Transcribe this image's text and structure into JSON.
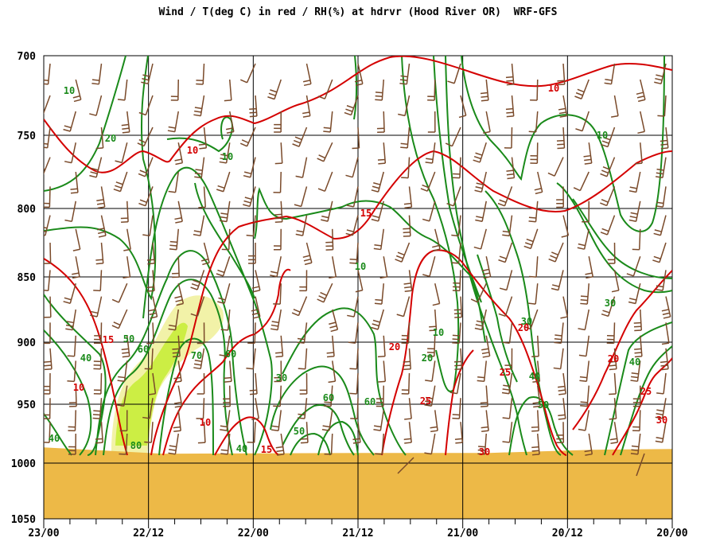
{
  "title": "Wind / T(deg C) in red / RH(%) at hdrvr (Hood River OR)  WRF-GFS",
  "chart_data": {
    "type": "meteogram",
    "y_axis": {
      "label": "",
      "ticks": [
        700,
        750,
        800,
        850,
        900,
        950,
        1000,
        1050
      ],
      "reversed": true,
      "range": [
        700,
        1050
      ]
    },
    "x_axis": {
      "label": "",
      "major_ticks": [
        "23/00",
        "22/12",
        "22/00",
        "21/12",
        "21/00",
        "20/12",
        "20/00"
      ]
    },
    "colors": {
      "temperature": "#d40000",
      "rh": "#1a8a1a",
      "wind": "#7a4a2a",
      "terrain": "#edb947",
      "rh_fill_light": "#f2f2a8",
      "rh_fill_dark": "#ccee44"
    },
    "ground_pressure": 990,
    "rh_labels": [
      {
        "text": "10",
        "x": "23/00+",
        "p": 715
      },
      {
        "text": "20",
        "p": 753
      },
      {
        "text": "10",
        "p": 772
      },
      {
        "text": "10",
        "p": 755
      },
      {
        "text": "50",
        "p": 898
      },
      {
        "text": "60",
        "p": 905
      },
      {
        "text": "40",
        "p": 915
      },
      {
        "text": "70",
        "p": 910
      },
      {
        "text": "60",
        "p": 910
      },
      {
        "text": "30",
        "p": 935
      },
      {
        "text": "60",
        "p": 950
      },
      {
        "text": "60",
        "p": 950
      },
      {
        "text": "50",
        "p": 970
      },
      {
        "text": "40",
        "p": 985
      },
      {
        "text": "80",
        "p": 985
      },
      {
        "text": "40",
        "p": 985
      },
      {
        "text": "10",
        "p": 895
      },
      {
        "text": "20",
        "p": 910
      },
      {
        "text": "30",
        "p": 875
      },
      {
        "text": "40",
        "p": 925
      },
      {
        "text": "50",
        "p": 957
      },
      {
        "text": "30",
        "p": 870
      },
      {
        "text": "40",
        "p": 915
      },
      {
        "text": "10",
        "p": 838
      }
    ],
    "t_labels": [
      {
        "text": "10",
        "p": 760
      },
      {
        "text": "10",
        "p": 725
      },
      {
        "text": "15",
        "p": 805
      },
      {
        "text": "15",
        "p": 900
      },
      {
        "text": "10",
        "p": 940
      },
      {
        "text": "20",
        "p": 905
      },
      {
        "text": "20",
        "p": 890
      },
      {
        "text": "20",
        "p": 912
      },
      {
        "text": "25",
        "p": 955
      },
      {
        "text": "25",
        "p": 925
      },
      {
        "text": "25",
        "p": 945
      },
      {
        "text": "30",
        "p": 990
      },
      {
        "text": "30",
        "p": 965
      },
      {
        "text": "15",
        "p": 985
      },
      {
        "text": "10",
        "p": 985
      }
    ]
  }
}
